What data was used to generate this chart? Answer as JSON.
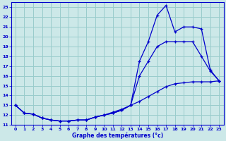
{
  "bg_color": "#cce8e8",
  "grid_color": "#99cccc",
  "line_color": "#0000cc",
  "xlabel": "Graphe des températures (°c)",
  "xlim": [
    -0.5,
    23.5
  ],
  "ylim": [
    11,
    23.5
  ],
  "xticks": [
    0,
    1,
    2,
    3,
    4,
    5,
    6,
    7,
    8,
    9,
    10,
    11,
    12,
    13,
    14,
    15,
    16,
    17,
    18,
    19,
    20,
    21,
    22,
    23
  ],
  "yticks": [
    11,
    12,
    13,
    14,
    15,
    16,
    17,
    18,
    19,
    20,
    21,
    22,
    23
  ],
  "curve_top_x": [
    0,
    1,
    2,
    3,
    4,
    5,
    6,
    7,
    8,
    9,
    10,
    11,
    12,
    13,
    14,
    15,
    16,
    17,
    18,
    19,
    20,
    21,
    22,
    23
  ],
  "curve_top_y": [
    13.0,
    12.2,
    12.1,
    11.7,
    11.5,
    11.4,
    11.4,
    11.5,
    11.5,
    11.8,
    12.0,
    12.2,
    12.5,
    13.0,
    17.5,
    19.5,
    22.2,
    23.2,
    20.5,
    21.0,
    21.0,
    20.8,
    16.6,
    15.5
  ],
  "curve_mid_x": [
    0,
    1,
    2,
    3,
    4,
    5,
    6,
    7,
    8,
    9,
    10,
    11,
    12,
    13,
    14,
    15,
    16,
    17,
    18,
    19,
    20,
    21,
    22,
    23
  ],
  "curve_mid_y": [
    13.0,
    12.2,
    12.1,
    11.7,
    11.5,
    11.4,
    11.4,
    11.5,
    11.5,
    11.8,
    12.0,
    12.2,
    12.5,
    13.0,
    16.0,
    17.5,
    19.0,
    19.5,
    19.5,
    19.5,
    19.5,
    18.0,
    16.5,
    15.5
  ],
  "curve_low_x": [
    0,
    1,
    2,
    3,
    4,
    5,
    6,
    7,
    8,
    9,
    10,
    11,
    12,
    13,
    14,
    15,
    16,
    17,
    18,
    19,
    20,
    21,
    22,
    23
  ],
  "curve_low_y": [
    13.0,
    12.2,
    12.1,
    11.7,
    11.5,
    11.4,
    11.4,
    11.5,
    11.5,
    11.8,
    12.0,
    12.3,
    12.6,
    13.0,
    13.4,
    13.9,
    14.4,
    14.9,
    15.2,
    15.3,
    15.4,
    15.4,
    15.4,
    15.5
  ]
}
